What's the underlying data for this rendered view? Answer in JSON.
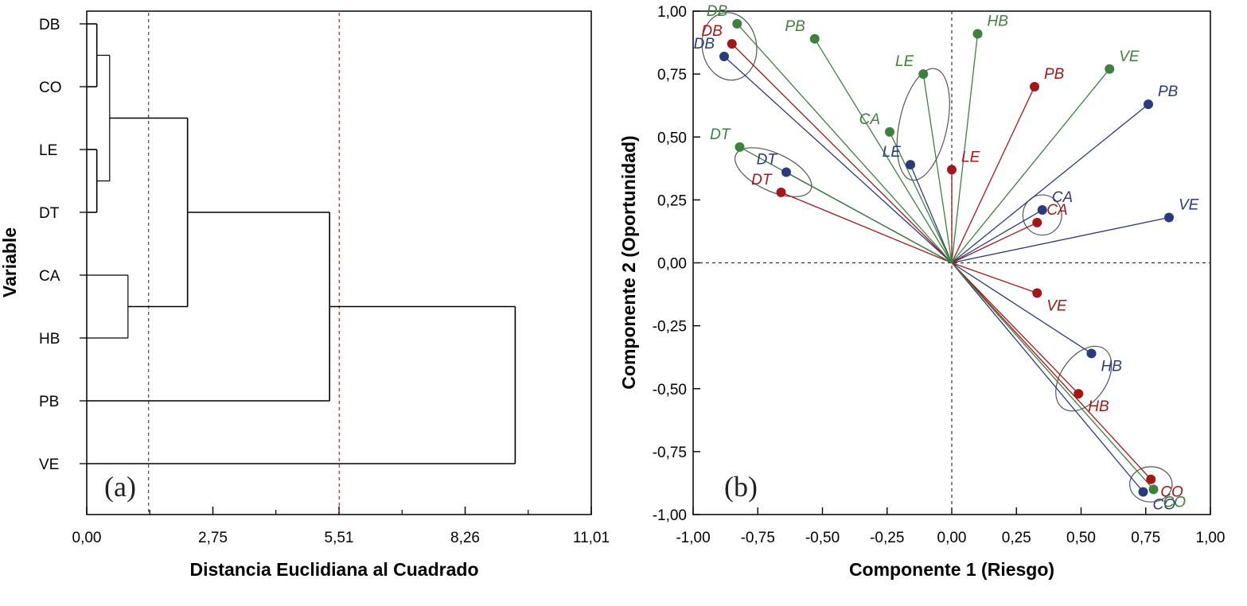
{
  "colors": {
    "blue": "#2b3a7a",
    "red": "#a01818",
    "green": "#3f7f3f",
    "cutline": "#a03030",
    "frame": "#000000"
  },
  "chart_data": [
    {
      "type": "dendrogram",
      "panel_label": "(a)",
      "xlabel": "Distancia Euclidiana al Cuadrado",
      "ylabel": "Variable",
      "xlim": [
        0,
        11.01
      ],
      "xticks": [
        "0,00",
        "2,75",
        "5,51",
        "8,26",
        "11,01"
      ],
      "leaves": [
        "DB",
        "CO",
        "LE",
        "DT",
        "CA",
        "HB",
        "PB",
        "VE"
      ],
      "merges": [
        {
          "a": "DB",
          "b": "CO",
          "height": 0.22
        },
        {
          "a": "LE",
          "b": "DT",
          "height": 0.22
        },
        {
          "a": "DB-CO",
          "b": "LE-DT",
          "height": 0.5
        },
        {
          "a": "CA",
          "b": "HB",
          "height": 0.9
        },
        {
          "a": "DB-CO-LE-DT",
          "b": "CA-HB",
          "height": 2.2
        },
        {
          "a": "DB-CO-LE-DT-CA-HB",
          "b": "PB",
          "height": 5.3
        },
        {
          "a": "DB-CO-LE-DT-CA-HB-PB",
          "b": "VE",
          "height": 9.35
        }
      ],
      "cut_lines": [
        1.35,
        5.51
      ]
    },
    {
      "type": "scatter",
      "panel_label": "(b)",
      "xlabel": "Componente 1 (Riesgo)",
      "ylabel": "Componente 2 (Oportunidad)",
      "xlim": [
        -1,
        1
      ],
      "ylim": [
        -1,
        1
      ],
      "xticks": [
        "-1,00",
        "-0,75",
        "-0,50",
        "-0,25",
        "0,00",
        "0,25",
        "0,50",
        "0,75",
        "1,00"
      ],
      "yticks": [
        "-1,00",
        "-0,75",
        "-0,50",
        "-0,25",
        "0,00",
        "0,25",
        "0,50",
        "0,75",
        "1,00"
      ],
      "vectors_from_origin": true,
      "series": [
        {
          "color": "blue",
          "points": [
            {
              "label": "DB",
              "x": -0.88,
              "y": 0.82
            },
            {
              "label": "DT",
              "x": -0.64,
              "y": 0.36
            },
            {
              "label": "LE",
              "x": -0.16,
              "y": 0.39
            },
            {
              "label": "CA",
              "x": 0.35,
              "y": 0.21
            },
            {
              "label": "PB",
              "x": 0.76,
              "y": 0.63
            },
            {
              "label": "VE",
              "x": 0.84,
              "y": 0.18
            },
            {
              "label": "HB",
              "x": 0.54,
              "y": -0.36
            },
            {
              "label": "CO",
              "x": 0.74,
              "y": -0.91
            }
          ]
        },
        {
          "color": "red",
          "points": [
            {
              "label": "DB",
              "x": -0.85,
              "y": 0.87
            },
            {
              "label": "DT",
              "x": -0.66,
              "y": 0.28
            },
            {
              "label": "LE",
              "x": 0.0,
              "y": 0.37
            },
            {
              "label": "PB",
              "x": 0.32,
              "y": 0.7
            },
            {
              "label": "CA",
              "x": 0.33,
              "y": 0.16
            },
            {
              "label": "VE",
              "x": 0.33,
              "y": -0.12
            },
            {
              "label": "HB",
              "x": 0.49,
              "y": -0.52
            },
            {
              "label": "CO",
              "x": 0.77,
              "y": -0.86
            }
          ]
        },
        {
          "color": "green",
          "points": [
            {
              "label": "DB",
              "x": -0.83,
              "y": 0.95
            },
            {
              "label": "PB",
              "x": -0.53,
              "y": 0.89
            },
            {
              "label": "HB",
              "x": 0.1,
              "y": 0.91
            },
            {
              "label": "VE",
              "x": 0.61,
              "y": 0.77
            },
            {
              "label": "LE",
              "x": -0.11,
              "y": 0.75
            },
            {
              "label": "CA",
              "x": -0.24,
              "y": 0.52
            },
            {
              "label": "DT",
              "x": -0.82,
              "y": 0.46
            },
            {
              "label": "CO",
              "x": 0.78,
              "y": -0.9
            }
          ]
        }
      ]
    }
  ]
}
